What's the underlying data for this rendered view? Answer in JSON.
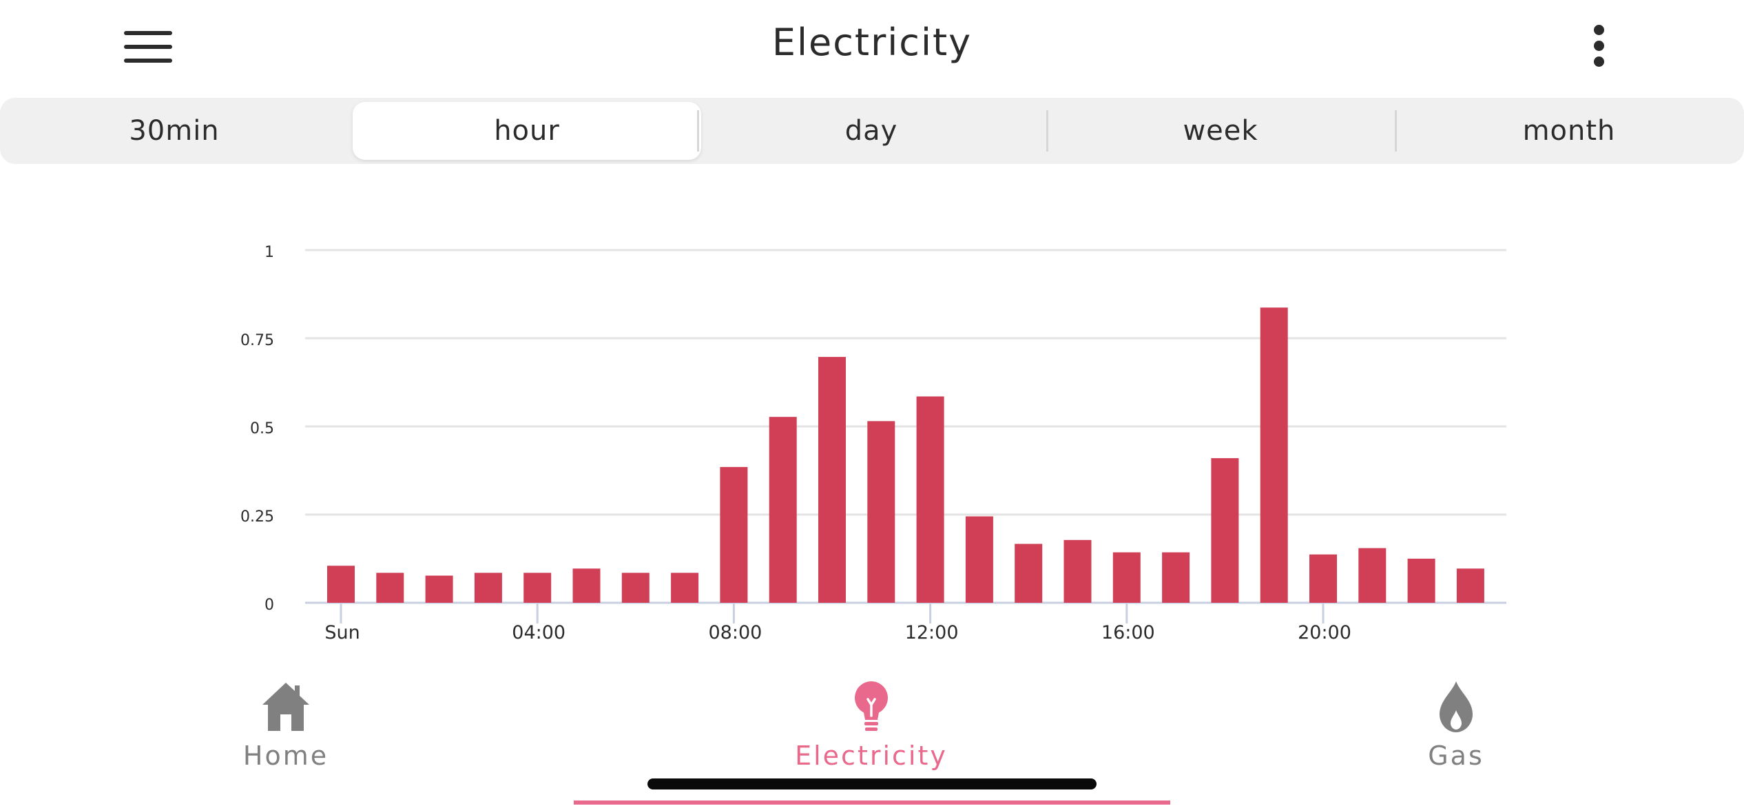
{
  "header": {
    "title": "Electricity",
    "menu_icon": "hamburger-menu-icon",
    "more_icon": "more-vertical-icon"
  },
  "tabs": [
    {
      "label": "30min",
      "active": false
    },
    {
      "label": "hour",
      "active": true
    },
    {
      "label": "day",
      "active": false
    },
    {
      "label": "week",
      "active": false
    },
    {
      "label": "month",
      "active": false
    }
  ],
  "chart_data": {
    "type": "bar",
    "color": "#d03f55",
    "x": [
      "Sun",
      "01:00",
      "02:00",
      "03:00",
      "04:00",
      "05:00",
      "06:00",
      "07:00",
      "08:00",
      "09:00",
      "10:00",
      "11:00",
      "12:00",
      "13:00",
      "14:00",
      "15:00",
      "16:00",
      "17:00",
      "18:00",
      "19:00",
      "20:00",
      "21:00",
      "22:00",
      "23:00"
    ],
    "values": [
      0.105,
      0.085,
      0.077,
      0.085,
      0.085,
      0.097,
      0.085,
      0.085,
      0.385,
      0.527,
      0.697,
      0.515,
      0.585,
      0.245,
      0.167,
      0.178,
      0.143,
      0.143,
      0.41,
      0.837,
      0.137,
      0.155,
      0.125,
      0.097
    ],
    "xticks": [
      "Sun",
      "04:00",
      "08:00",
      "12:00",
      "16:00",
      "20:00"
    ],
    "xtick_index": [
      0,
      4,
      8,
      12,
      16,
      20
    ],
    "yticks": [
      "0",
      "0.25",
      "0.5",
      "0.75",
      "1"
    ],
    "ytick_values": [
      0,
      0.25,
      0.5,
      0.75,
      1
    ],
    "ylim": [
      0,
      1
    ],
    "grid": true,
    "title": "",
    "xlabel": "",
    "ylabel": ""
  },
  "bottom_nav": {
    "items": [
      {
        "label": "Home",
        "icon": "home-icon",
        "active": false
      },
      {
        "label": "Electricity",
        "icon": "lightbulb-icon",
        "active": true
      },
      {
        "label": "Gas",
        "icon": "flame-icon",
        "active": false
      }
    ],
    "active_color": "#e8698c",
    "inactive_color": "#808080"
  }
}
